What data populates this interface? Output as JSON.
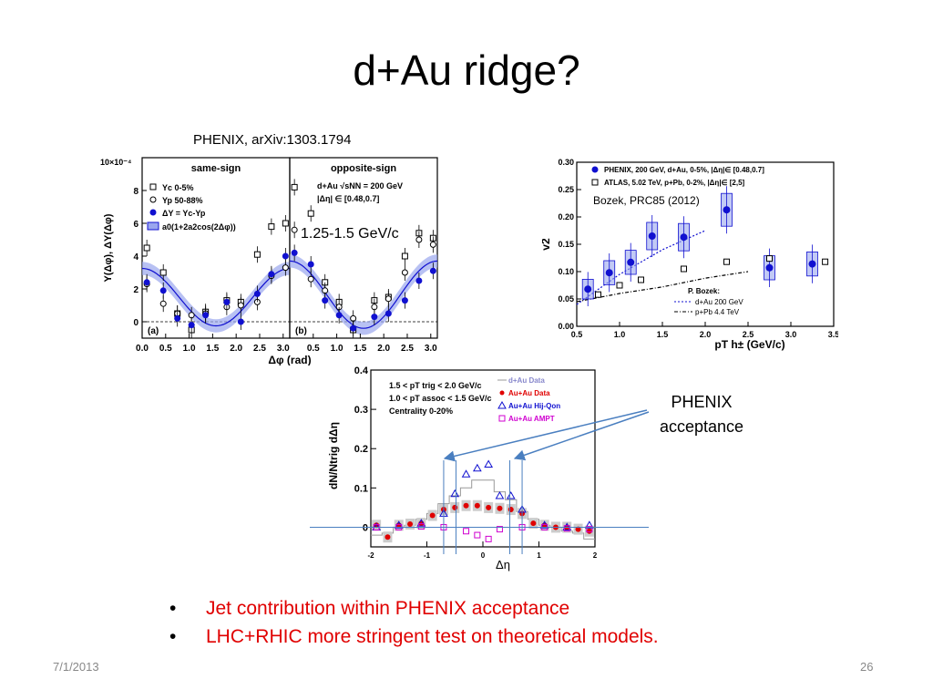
{
  "slide": {
    "title": "d+Au ridge?",
    "caption_left": "PHENIX, arXiv:1303.1794",
    "pt_label": "1.25-1.5 GeV/c",
    "caption_right": "Bozek, PRC85 (2012)",
    "phenix_note": [
      "PHENIX",
      "acceptance"
    ],
    "bullets": [
      "Jet contribution within PHENIX acceptance",
      "LHC+RHIC more stringent test on theoretical models."
    ],
    "date": "7/1/2013",
    "page_number": "26"
  },
  "colors": {
    "blue": "#1010d0",
    "band": "#9aa6ee",
    "red": "#e00000",
    "magenta": "#d000d0",
    "lightblue": "#8888cc"
  },
  "chart_data": [
    {
      "type": "scatter",
      "title": "",
      "panels": [
        "same-sign",
        "opposite-sign"
      ],
      "panel_tags": [
        "(a)",
        "(b)"
      ],
      "ylabel": "Y(Δφ), ΔY(Δφ)",
      "xlabel": "Δφ (rad)",
      "yscale_label": "10×10⁻⁴",
      "xlim": [
        0,
        3.14
      ],
      "ylim": [
        -1,
        10
      ],
      "xticks": [
        "0.0",
        "0.5",
        "1.0",
        "1.5",
        "2.0",
        "2.5",
        "3.0"
      ],
      "yticks": [
        "0",
        "2",
        "4",
        "6",
        "8"
      ],
      "legend_a": [
        "Yc 0-5%",
        "Yp 50-88%",
        "ΔY = Yc-Yp",
        "a0(1+2a2cos(2Δφ))"
      ],
      "legend_b": [
        "d+Au √sNN = 200 GeV",
        "|Δη| ∈ [0.48,0.7]"
      ],
      "series": [
        {
          "name": "Yc 0-5%",
          "panel": "same-sign",
          "x": [
            0.1,
            0.45,
            0.75,
            1.05,
            1.35,
            1.8,
            2.1,
            2.45,
            2.75,
            3.05
          ],
          "y": [
            4.5,
            3.0,
            0.5,
            -0.5,
            0.6,
            1.3,
            1.2,
            4.1,
            5.8,
            6.0
          ]
        },
        {
          "name": "Yp 50-88%",
          "panel": "same-sign",
          "x": [
            0.1,
            0.45,
            0.75,
            1.05,
            1.35,
            1.8,
            2.1,
            2.45,
            2.75,
            3.05
          ],
          "y": [
            2.3,
            1.1,
            0.5,
            0.4,
            0.5,
            0.9,
            1.0,
            1.2,
            2.8,
            3.3
          ]
        },
        {
          "name": "ΔY = Yc-Yp",
          "panel": "same-sign",
          "x": [
            0.1,
            0.45,
            0.75,
            1.05,
            1.35,
            1.8,
            2.1,
            2.45,
            2.75,
            3.05
          ],
          "y": [
            2.4,
            1.9,
            0.2,
            -0.2,
            0.4,
            1.2,
            0.0,
            1.7,
            2.9,
            4.0
          ]
        },
        {
          "name": "Yc 0-5%",
          "panel": "opposite-sign",
          "x": [
            0.1,
            0.45,
            0.75,
            1.05,
            1.35,
            1.8,
            2.1,
            2.45,
            2.75,
            3.05
          ],
          "y": [
            8.2,
            6.6,
            2.4,
            1.2,
            -0.5,
            1.3,
            1.5,
            4.0,
            5.4,
            5.1
          ]
        },
        {
          "name": "Yp 50-88%",
          "panel": "opposite-sign",
          "x": [
            0.1,
            0.45,
            0.75,
            1.05,
            1.35,
            1.8,
            2.1,
            2.45,
            2.75,
            3.05
          ],
          "y": [
            5.6,
            2.6,
            1.9,
            0.9,
            0.2,
            0.9,
            1.4,
            3.0,
            5.0,
            4.7
          ]
        },
        {
          "name": "ΔY = Yc-Yp",
          "panel": "opposite-sign",
          "x": [
            0.1,
            0.45,
            0.75,
            1.05,
            1.35,
            1.8,
            2.1,
            2.45,
            2.75,
            3.05
          ],
          "y": [
            4.2,
            3.5,
            1.3,
            0.4,
            -0.4,
            0.3,
            0.5,
            1.3,
            2.5,
            3.1
          ]
        }
      ],
      "fit": {
        "same-sign": {
          "a0": 1.5,
          "amp": 1.75
        },
        "opposite-sign": {
          "a0": 1.65,
          "amp": 2.05
        }
      }
    },
    {
      "type": "scatter",
      "title": "",
      "ylabel": "v2",
      "xlabel": "pT h± (GeV/c)",
      "xlim": [
        0.5,
        3.5
      ],
      "ylim": [
        0,
        0.3
      ],
      "xticks": [
        "0.5",
        "1.0",
        "1.5",
        "2.0",
        "2.5",
        "3.0",
        "3.5"
      ],
      "yticks": [
        "0.00",
        "0.05",
        "0.10",
        "0.15",
        "0.20",
        "0.25",
        "0.30"
      ],
      "legend": [
        "PHENIX, 200 GeV, d+Au, 0-5%, |Δη|∈ [0.48,0.7]",
        "ATLAS, 5.02 TeV, p+Pb, 0-2%, |Δη|∈ [2,5]"
      ],
      "theory_legend": [
        "P. Bozek:",
        "d+Au 200 GeV",
        "p+Pb 4.4 TeV"
      ],
      "series": [
        {
          "name": "PHENIX, 200 GeV, d+Au, 0-5%, |Δη|∈ [0.48,0.7]",
          "x": [
            0.63,
            0.88,
            1.13,
            1.38,
            1.75,
            2.25,
            2.75,
            3.25
          ],
          "y": [
            0.068,
            0.098,
            0.117,
            0.165,
            0.163,
            0.213,
            0.107,
            0.114
          ],
          "sys": [
            0.018,
            0.022,
            0.022,
            0.025,
            0.025,
            0.03,
            0.022,
            0.022
          ]
        },
        {
          "name": "ATLAS, 5.02 TeV, p+Pb, 0-2%, |Δη|∈ [2,5]",
          "x": [
            0.75,
            1.0,
            1.25,
            1.75,
            2.25,
            2.75,
            3.4
          ],
          "y": [
            0.058,
            0.075,
            0.085,
            0.105,
            0.118,
            0.124,
            0.118
          ]
        }
      ],
      "theory": {
        "dAu": {
          "x": [
            0.5,
            1.0,
            1.5,
            2.0
          ],
          "y": [
            0.04,
            0.095,
            0.14,
            0.175
          ]
        },
        "pPb": {
          "x": [
            0.5,
            1.0,
            1.5,
            2.0,
            2.5
          ],
          "y": [
            0.045,
            0.06,
            0.072,
            0.088,
            0.1
          ]
        }
      }
    },
    {
      "type": "scatter",
      "title": "",
      "ylabel": "dN/Ntrig dΔη",
      "xlabel": "Δη",
      "xlim": [
        -2,
        2
      ],
      "ylim": [
        -0.05,
        0.4
      ],
      "xticks": [
        "-2",
        "-1",
        "0",
        "1",
        "2"
      ],
      "yticks": [
        "0",
        "0.1",
        "0.2",
        "0.3",
        "0.4"
      ],
      "info": [
        "1.5 < pT trig < 2.0 GeV/c",
        "1.0 < pT assoc < 1.5 GeV/c",
        "Centrality 0-20%"
      ],
      "legend": [
        "d+Au Data",
        "Au+Au Data",
        "Au+Au Hij-Qon",
        "Au+Au AMPT"
      ],
      "series": [
        {
          "name": "d+Au Data",
          "x": [
            -1.9,
            -1.7,
            -1.5,
            -1.3,
            -1.1,
            -0.9,
            -0.7,
            -0.5,
            -0.3,
            -0.1,
            0.1,
            0.3,
            0.5,
            0.7,
            0.9,
            1.1,
            1.3,
            1.5,
            1.7,
            1.9
          ],
          "y": [
            -0.02,
            -0.015,
            0.0,
            0.005,
            0.02,
            0.035,
            0.06,
            0.08,
            0.1,
            0.12,
            0.12,
            0.09,
            0.07,
            0.04,
            0.02,
            0.005,
            0.0,
            -0.01,
            -0.015,
            -0.03
          ]
        },
        {
          "name": "Au+Au Data",
          "x": [
            -1.9,
            -1.7,
            -1.5,
            -1.3,
            -1.1,
            -0.9,
            -0.7,
            -0.5,
            -0.3,
            -0.1,
            0.1,
            0.3,
            0.5,
            0.7,
            0.9,
            1.1,
            1.3,
            1.5,
            1.7,
            1.9
          ],
          "y": [
            0.005,
            -0.025,
            0.005,
            0.008,
            0.01,
            0.03,
            0.045,
            0.05,
            0.055,
            0.055,
            0.05,
            0.048,
            0.045,
            0.035,
            0.01,
            0.005,
            0.0,
            0.0,
            -0.005,
            -0.01
          ]
        },
        {
          "name": "Au+Au Hij-Qon",
          "x": [
            -1.9,
            -1.5,
            -1.1,
            -0.7,
            -0.5,
            -0.3,
            -0.1,
            0.1,
            0.3,
            0.5,
            0.7,
            1.1,
            1.5,
            1.9
          ],
          "y": [
            0.0,
            0.005,
            0.01,
            0.035,
            0.085,
            0.135,
            0.15,
            0.16,
            0.08,
            0.08,
            0.045,
            0.005,
            0.0,
            0.005
          ]
        },
        {
          "name": "Au+Au AMPT",
          "x": [
            -1.9,
            -1.5,
            -1.1,
            -0.7,
            -0.3,
            -0.1,
            0.1,
            0.3,
            0.7,
            1.1,
            1.5,
            1.9
          ],
          "y": [
            0.0,
            0.0,
            0.002,
            0.0,
            -0.01,
            -0.02,
            -0.03,
            -0.005,
            0.0,
            0.0,
            -0.003,
            -0.005
          ]
        }
      ],
      "acceptance_lines": [
        -0.7,
        -0.48,
        0.48,
        0.7
      ]
    }
  ]
}
